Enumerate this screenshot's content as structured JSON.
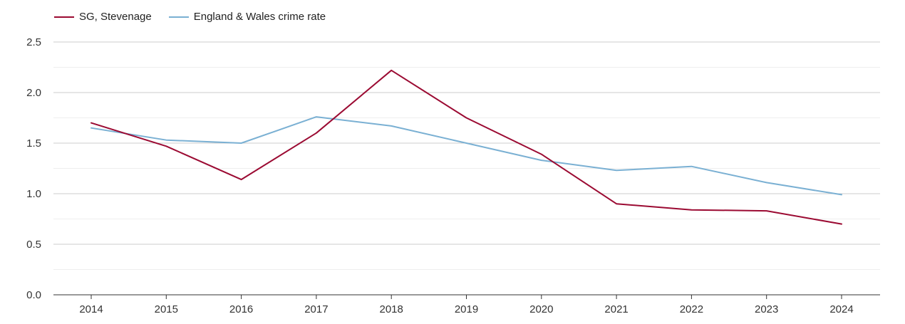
{
  "chart_data": {
    "type": "line",
    "title": "",
    "xlabel": "",
    "ylabel": "",
    "x": [
      "2014",
      "2015",
      "2016",
      "2017",
      "2018",
      "2019",
      "2020",
      "2021",
      "2022",
      "2023",
      "2024"
    ],
    "ylim": [
      0,
      2.5
    ],
    "yticks": [
      "0.0",
      "0.5",
      "1.0",
      "1.5",
      "2.0",
      "2.5"
    ],
    "grid": true,
    "legend_position": "top-left",
    "series": [
      {
        "name": "SG, Stevenage",
        "color": "#9b0a32",
        "values": [
          1.7,
          1.47,
          1.14,
          1.6,
          2.22,
          1.75,
          1.39,
          0.9,
          0.84,
          0.83,
          0.7
        ]
      },
      {
        "name": "England & Wales crime rate",
        "color": "#7ab0d3",
        "values": [
          1.65,
          1.53,
          1.5,
          1.76,
          1.67,
          1.5,
          1.33,
          1.23,
          1.27,
          1.11,
          0.99
        ]
      }
    ]
  }
}
